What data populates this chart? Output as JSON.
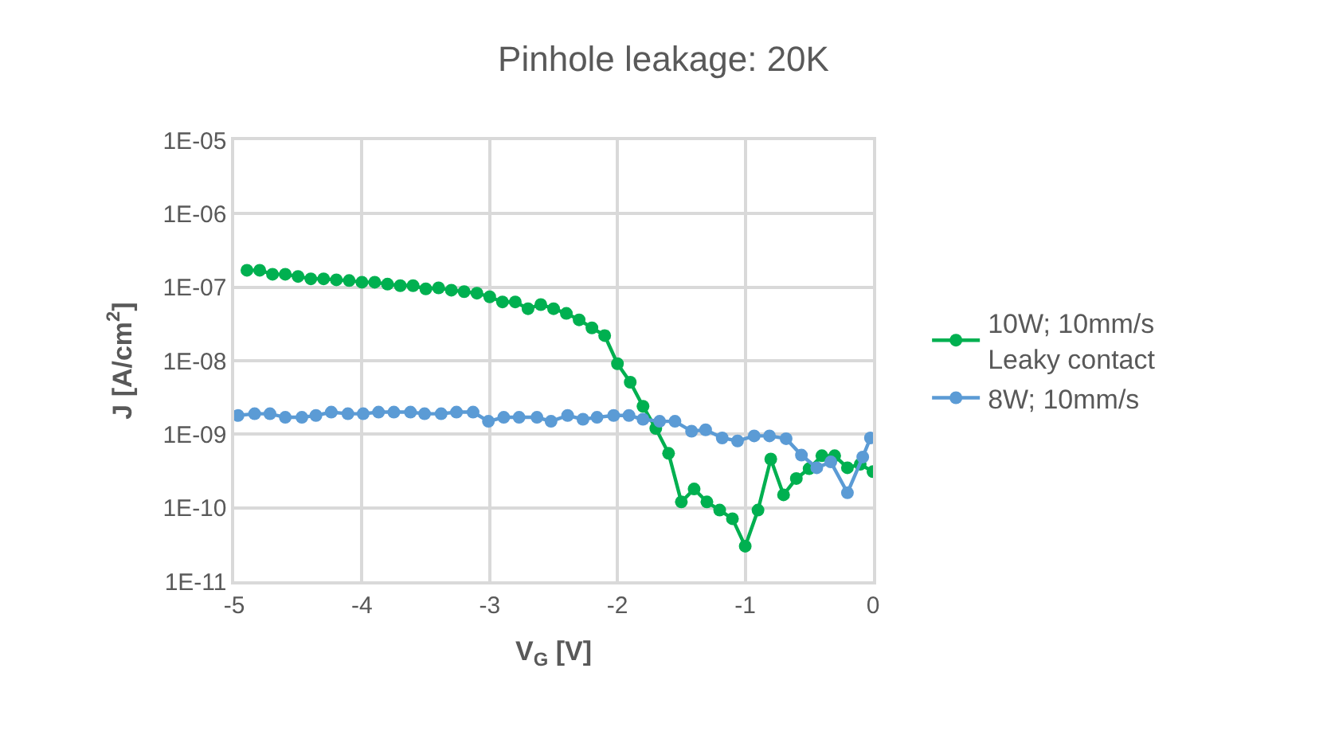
{
  "chart_data": {
    "type": "line",
    "title": "Pinhole leakage: 20K",
    "xlabel": "V$_{G}$ [V]",
    "ylabel": "J [A/cm$^{2}$]",
    "log": "y",
    "grid": true,
    "legend": "right",
    "marker": "circle",
    "line_style": "solid",
    "xlim": [
      -5,
      0
    ],
    "xticks": [
      -5,
      -4,
      -3,
      -2,
      -1,
      0
    ],
    "ylim": [
      1e-11,
      1e-05
    ],
    "yticks": [
      {
        "value": 1e-11,
        "label": "1E-11"
      },
      {
        "value": 1e-10,
        "label": "1E-10"
      },
      {
        "value": 1e-09,
        "label": "1E-09"
      },
      {
        "value": 1e-08,
        "label": "1E-08"
      },
      {
        "value": 1e-07,
        "label": "1E-07"
      },
      {
        "value": 1e-06,
        "label": "1E-06"
      },
      {
        "value": 1e-05,
        "label": "1E-05"
      }
    ],
    "series": [
      {
        "name": "10W; 10mm/s\nLeaky contact",
        "color": "#00b050",
        "x": [
          -4.9,
          -4.8,
          -4.7,
          -4.6,
          -4.5,
          -4.4,
          -4.3,
          -4.2,
          -4.1,
          -4.0,
          -3.9,
          -3.8,
          -3.7,
          -3.6,
          -3.5,
          -3.4,
          -3.3,
          -3.2,
          -3.1,
          -3.0,
          -2.9,
          -2.8,
          -2.7,
          -2.6,
          -2.5,
          -2.4,
          -2.3,
          -2.2,
          -2.1,
          -2.0,
          -1.9,
          -1.8,
          -1.7,
          -1.6,
          -1.5,
          -1.4,
          -1.3,
          -1.2,
          -1.1,
          -1.0,
          -0.9,
          -0.8,
          -0.7,
          -0.6,
          -0.5,
          -0.4,
          -0.3,
          -0.2,
          -0.1,
          0
        ],
        "values": [
          1.7e-07,
          1.7e-07,
          1.5e-07,
          1.5e-07,
          1.4e-07,
          1.3e-07,
          1.3e-07,
          1.26e-07,
          1.23e-07,
          1.17e-07,
          1.17e-07,
          1.1e-07,
          1.05e-07,
          1.05e-07,
          9.5e-08,
          9.8e-08,
          9.1e-08,
          8.7e-08,
          8.3e-08,
          7.4e-08,
          6.3e-08,
          6.3e-08,
          5.1e-08,
          5.8e-08,
          5.1e-08,
          4.4e-08,
          3.6e-08,
          2.8e-08,
          2.2e-08,
          9.1e-09,
          5.1e-09,
          2.4e-09,
          1.2e-09,
          5.5e-10,
          1.2e-10,
          1.8e-10,
          1.2e-10,
          9.3e-11,
          7.1e-11,
          3e-11,
          9.3e-11,
          4.6e-10,
          1.5e-10,
          2.5e-10,
          3.4e-10,
          5.1e-10,
          5.1e-10,
          3.5e-10,
          3.9e-10,
          3.1e-10
        ]
      },
      {
        "name": "8W; 10mm/s",
        "color": "#5b9bd5",
        "x": [
          -4.97,
          -4.84,
          -4.72,
          -4.6,
          -4.47,
          -4.36,
          -4.24,
          -4.11,
          -3.99,
          -3.87,
          -3.75,
          -3.62,
          -3.51,
          -3.38,
          -3.26,
          -3.13,
          -3.01,
          -2.89,
          -2.77,
          -2.63,
          -2.52,
          -2.39,
          -2.27,
          -2.16,
          -2.03,
          -1.91,
          -1.8,
          -1.67,
          -1.55,
          -1.42,
          -1.31,
          -1.18,
          -1.06,
          -0.93,
          -0.81,
          -0.68,
          -0.56,
          -0.44,
          -0.33,
          -0.2,
          -0.08,
          -0.02
        ],
        "values": [
          1.8e-09,
          1.9e-09,
          1.9e-09,
          1.7e-09,
          1.7e-09,
          1.8e-09,
          2e-09,
          1.9e-09,
          1.9e-09,
          2e-09,
          2e-09,
          2e-09,
          1.9e-09,
          1.9e-09,
          2e-09,
          2e-09,
          1.5e-09,
          1.7e-09,
          1.7e-09,
          1.7e-09,
          1.5e-09,
          1.8e-09,
          1.6e-09,
          1.7e-09,
          1.8e-09,
          1.8e-09,
          1.6e-09,
          1.5e-09,
          1.5e-09,
          1.1e-09,
          1.15e-09,
          8.9e-10,
          8.1e-10,
          9.5e-10,
          9.5e-10,
          8.7e-10,
          5.2e-10,
          3.5e-10,
          4.2e-10,
          1.6e-10,
          4.9e-10,
          8.9e-10
        ]
      }
    ]
  }
}
